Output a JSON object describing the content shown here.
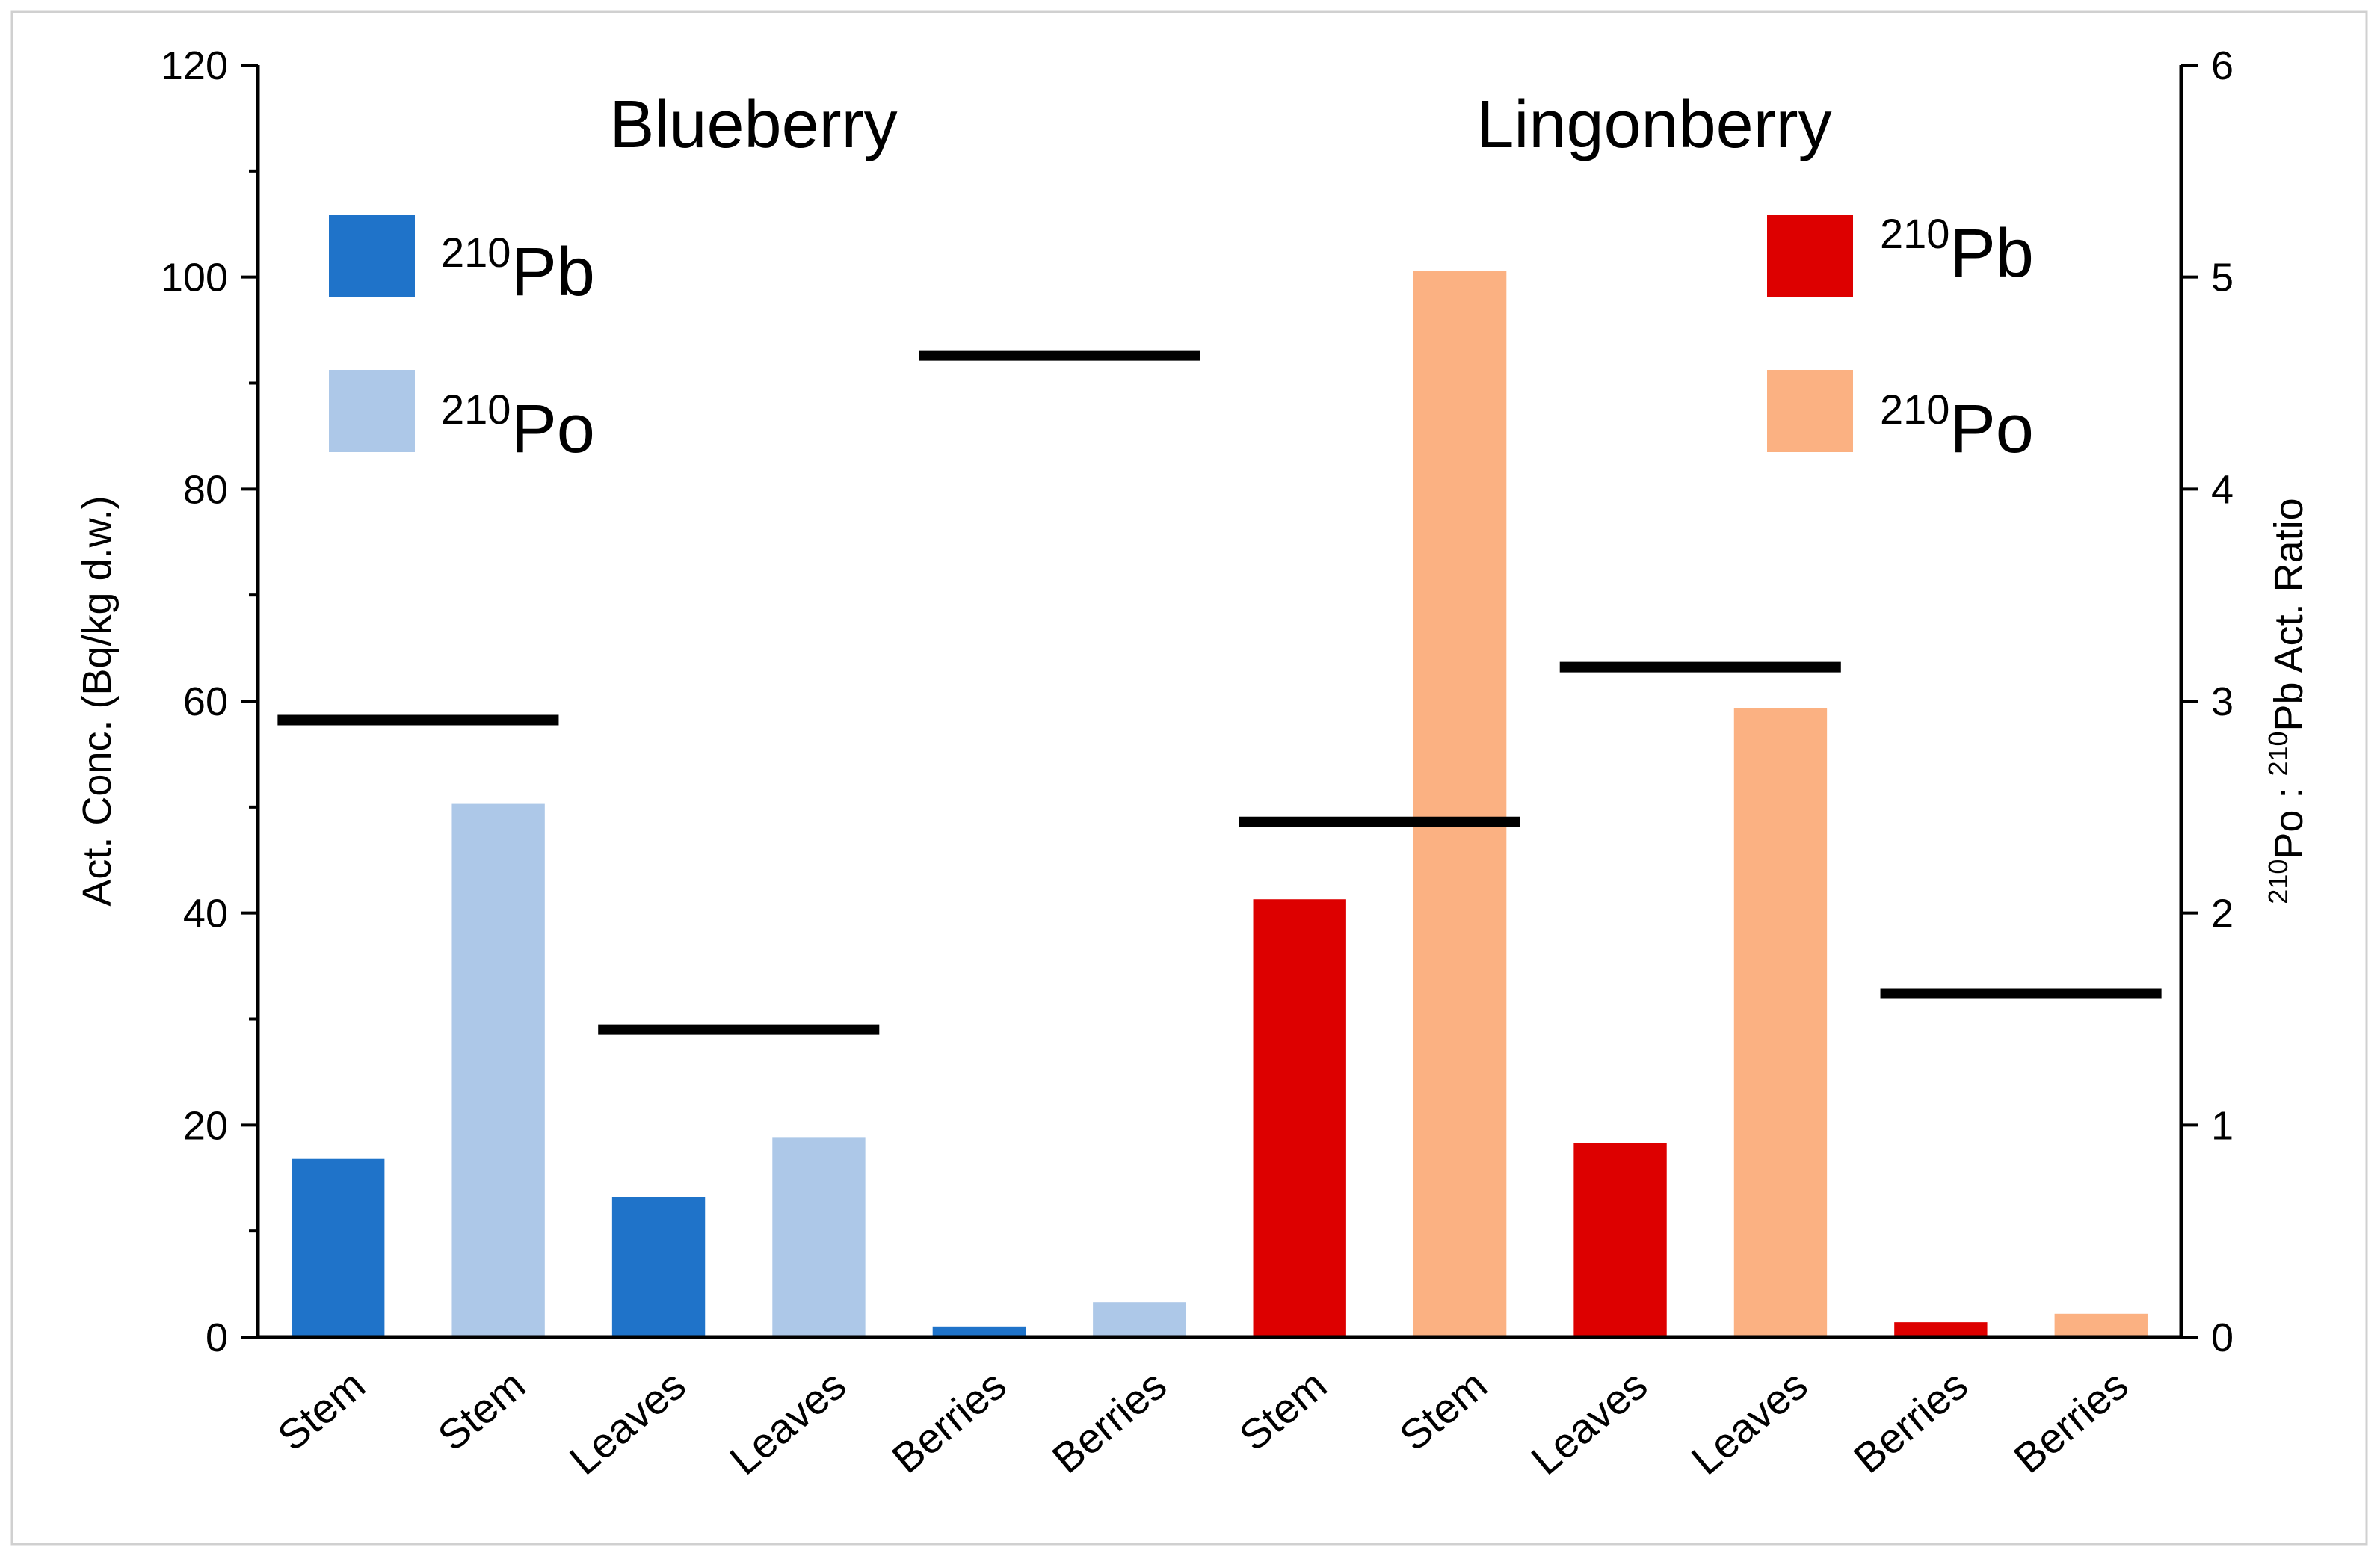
{
  "chart_data": {
    "type": "bar",
    "groups": [
      {
        "title": "Blueberry",
        "legend": [
          {
            "isotope_mass": "210",
            "isotope_symbol": "Pb",
            "color": "#1f73c9"
          },
          {
            "isotope_mass": "210",
            "isotope_symbol": "Po",
            "color": "#adc8e8"
          }
        ]
      },
      {
        "title": "Lingonberry",
        "legend": [
          {
            "isotope_mass": "210",
            "isotope_symbol": "Pb",
            "color": "#dd0000"
          },
          {
            "isotope_mass": "210",
            "isotope_symbol": "Po",
            "color": "#fbb182"
          }
        ]
      }
    ],
    "categories": [
      "Stem",
      "Stem",
      "Leaves",
      "Leaves",
      "Berries",
      "Berries",
      "Stem",
      "Stem",
      "Leaves",
      "Leaves",
      "Berries",
      "Berries"
    ],
    "bars": [
      {
        "category": "Stem",
        "group": "Blueberry",
        "isotope": "210Pb",
        "value": 16.8,
        "color": "#1f73c9"
      },
      {
        "category": "Stem",
        "group": "Blueberry",
        "isotope": "210Po",
        "value": 50.3,
        "color": "#adc8e8"
      },
      {
        "category": "Leaves",
        "group": "Blueberry",
        "isotope": "210Pb",
        "value": 13.2,
        "color": "#1f73c9"
      },
      {
        "category": "Leaves",
        "group": "Blueberry",
        "isotope": "210Po",
        "value": 18.8,
        "color": "#adc8e8"
      },
      {
        "category": "Berries",
        "group": "Blueberry",
        "isotope": "210Pb",
        "value": 1.0,
        "color": "#1f73c9"
      },
      {
        "category": "Berries",
        "group": "Blueberry",
        "isotope": "210Po",
        "value": 3.3,
        "color": "#adc8e8"
      },
      {
        "category": "Stem",
        "group": "Lingonberry",
        "isotope": "210Pb",
        "value": 41.3,
        "color": "#dd0000"
      },
      {
        "category": "Stem",
        "group": "Lingonberry",
        "isotope": "210Po",
        "value": 100.6,
        "color": "#fbb182"
      },
      {
        "category": "Leaves",
        "group": "Lingonberry",
        "isotope": "210Pb",
        "value": 18.3,
        "color": "#dd0000"
      },
      {
        "category": "Leaves",
        "group": "Lingonberry",
        "isotope": "210Po",
        "value": 59.3,
        "color": "#fbb182"
      },
      {
        "category": "Berries",
        "group": "Lingonberry",
        "isotope": "210Pb",
        "value": 1.4,
        "color": "#dd0000"
      },
      {
        "category": "Berries",
        "group": "Lingonberry",
        "isotope": "210Po",
        "value": 2.2,
        "color": "#fbb182"
      }
    ],
    "ratios": [
      {
        "group": "Blueberry",
        "category": "Stem",
        "value": 2.91,
        "from_index": 0,
        "to_index": 1
      },
      {
        "group": "Blueberry",
        "category": "Leaves",
        "value": 1.45,
        "from_index": 2,
        "to_index": 3
      },
      {
        "group": "Blueberry",
        "category": "Berries",
        "value": 4.63,
        "from_index": 4,
        "to_index": 5
      },
      {
        "group": "Lingonberry",
        "category": "Stem",
        "value": 2.43,
        "from_index": 6,
        "to_index": 7
      },
      {
        "group": "Lingonberry",
        "category": "Leaves",
        "value": 3.16,
        "from_index": 8,
        "to_index": 9
      },
      {
        "group": "Lingonberry",
        "category": "Berries",
        "value": 1.62,
        "from_index": 10,
        "to_index": 11
      }
    ],
    "left_axis": {
      "label": "Act. Conc. (Bq/kg d.w.)",
      "range": [
        0,
        120
      ],
      "ticks": [
        "0",
        "20",
        "40",
        "60",
        "80",
        "100",
        "120"
      ]
    },
    "right_axis": {
      "label_parts": [
        "210",
        "Po : ",
        "210",
        "Pb Act. Ratio"
      ],
      "range": [
        0,
        6
      ],
      "ticks": [
        "0",
        "1",
        "2",
        "3",
        "4",
        "5",
        "6"
      ]
    },
    "ratio_line_color": "#000000",
    "grid": false
  }
}
